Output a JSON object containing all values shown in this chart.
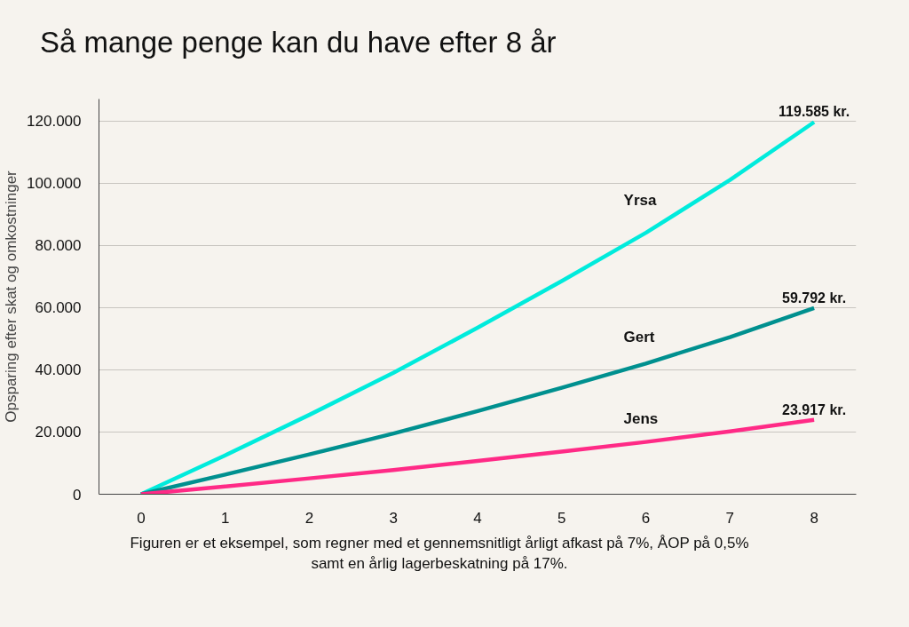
{
  "chart_data": {
    "type": "line",
    "title": "Så mange penge kan du have efter 8 år",
    "ylabel": "Opsparing efter skat og omkostninger",
    "x": [
      0,
      1,
      2,
      3,
      4,
      5,
      6,
      7,
      8
    ],
    "series": [
      {
        "name": "Yrsa",
        "color": "#00ebdc",
        "values": [
          0,
          12500,
          25500,
          39000,
          53500,
          68500,
          84000,
          101000,
          119585
        ],
        "value_labels": [
          null,
          null,
          null,
          null,
          null,
          null,
          null,
          null,
          "119.585 kr."
        ]
      },
      {
        "name": "Gert",
        "color": "#00908f",
        "values": [
          0,
          6300,
          12800,
          19500,
          26700,
          34200,
          42000,
          50500,
          59792
        ],
        "value_labels": [
          null,
          null,
          null,
          null,
          null,
          null,
          null,
          null,
          "59.792 kr."
        ]
      },
      {
        "name": "Jens",
        "color": "#ff2a86",
        "values": [
          0,
          2500,
          5100,
          7800,
          10700,
          13700,
          16800,
          20200,
          23917
        ],
        "value_labels": [
          null,
          null,
          null,
          null,
          null,
          null,
          null,
          null,
          "23.917 kr."
        ]
      }
    ],
    "xlim": [
      -0.5,
      8.5
    ],
    "xticks": [
      0,
      1,
      2,
      3,
      4,
      5,
      6,
      7,
      8
    ],
    "ylim": [
      0,
      127000
    ],
    "yticks": [
      {
        "value": 0,
        "label": "0"
      },
      {
        "value": 20000,
        "label": "20.000"
      },
      {
        "value": 40000,
        "label": "40.000"
      },
      {
        "value": 60000,
        "label": "60.000"
      },
      {
        "value": 80000,
        "label": "80.000"
      },
      {
        "value": 100000,
        "label": "100.000"
      },
      {
        "value": 120000,
        "label": "120.000"
      }
    ],
    "grid": "y",
    "marker": "none",
    "line_style": "solid",
    "annotations": [
      "Figuren er et eksempel, som regner med et gennemsnitligt årligt afkast på 7%, ÅOP på 0,5% samt en årlig lagerbeskatning på 17%."
    ]
  }
}
